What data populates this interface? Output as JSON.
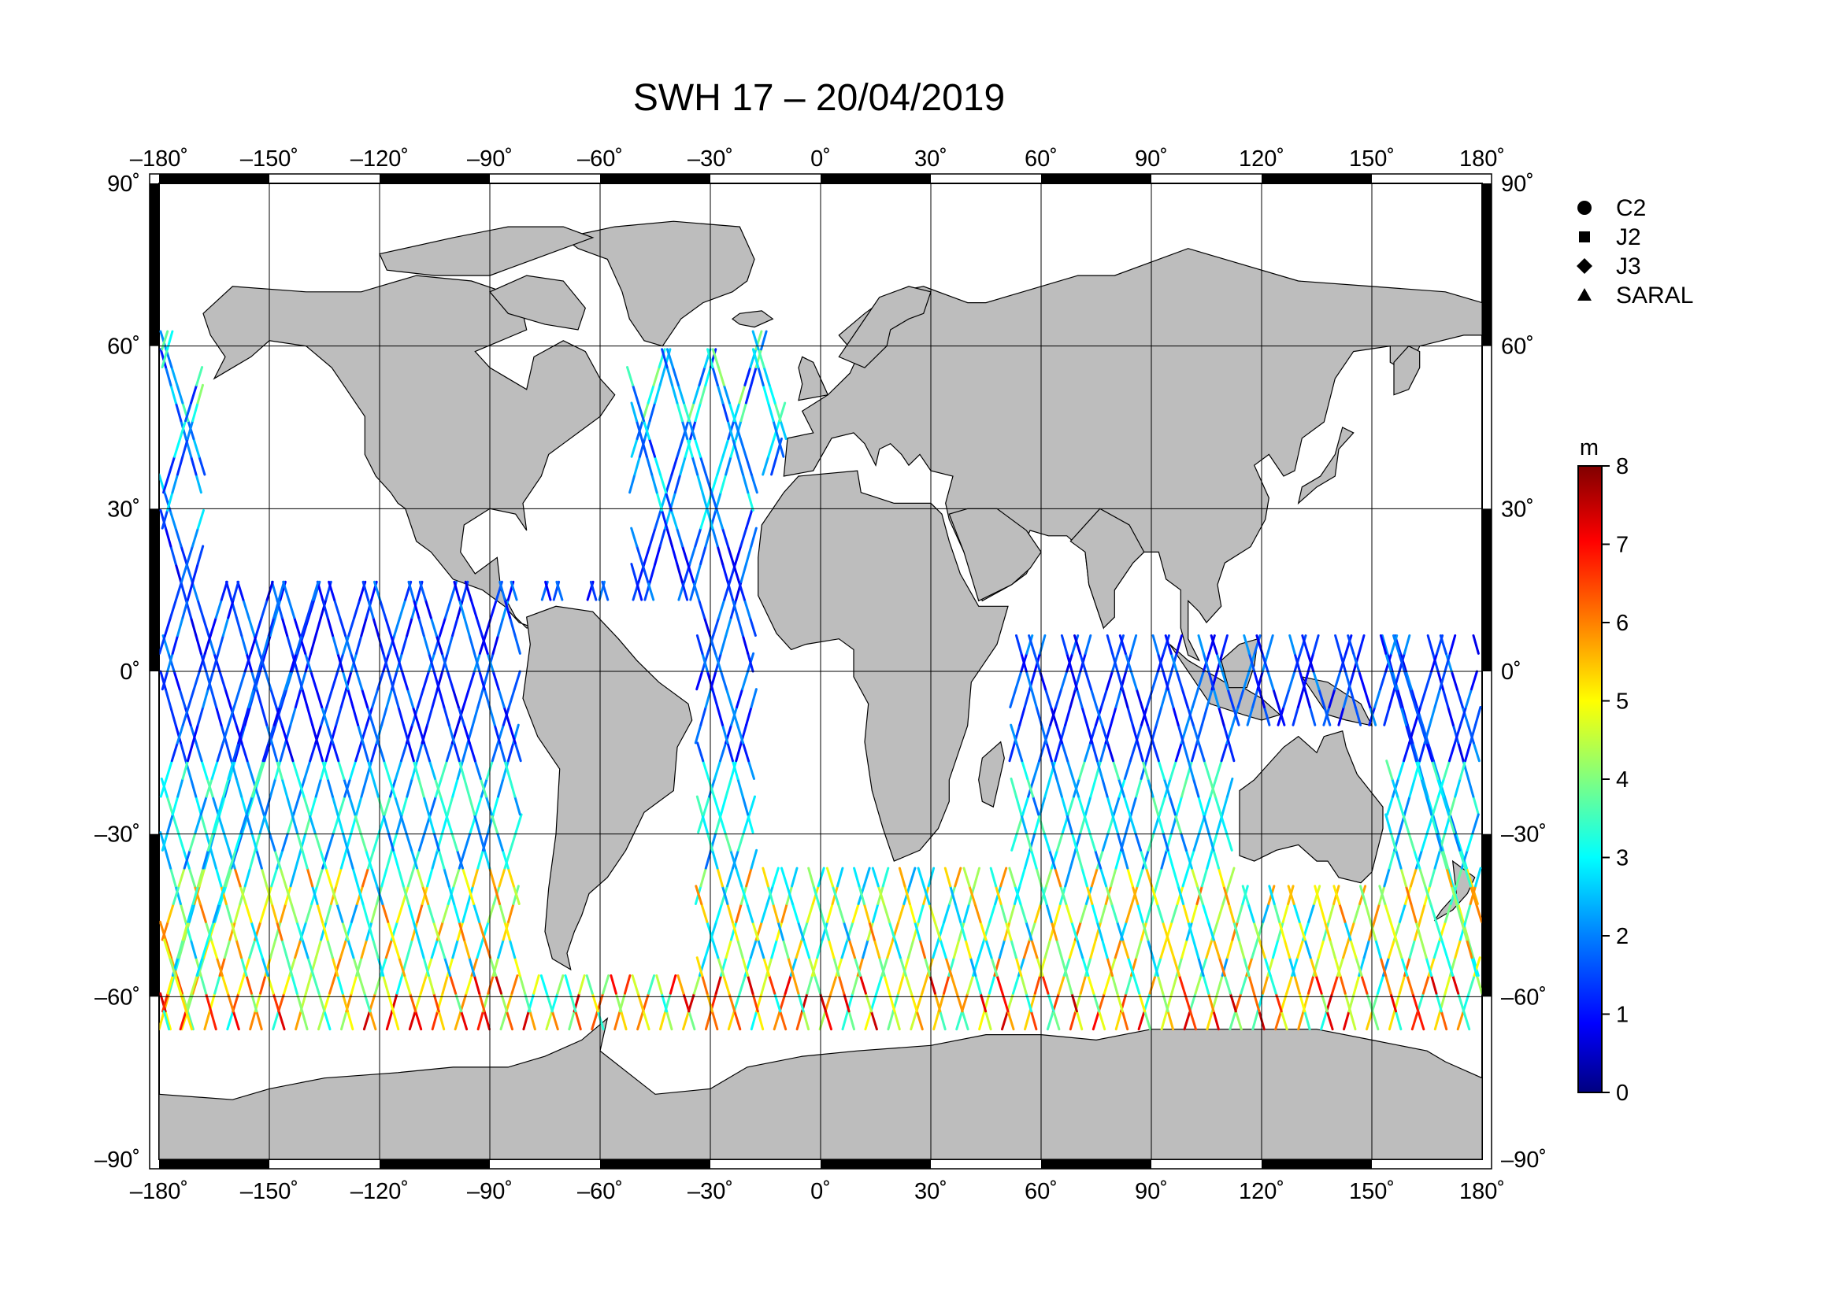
{
  "map": {
    "title": "SWH 17 – 20/04/2019",
    "projection": "equirectangular",
    "lon_range": [
      -180,
      180
    ],
    "lat_range": [
      -90,
      90
    ],
    "lon_ticks": [
      {
        "value": -180,
        "label": "–180˚"
      },
      {
        "value": -150,
        "label": "–150˚"
      },
      {
        "value": -120,
        "label": "–120˚"
      },
      {
        "value": -90,
        "label": "–90˚"
      },
      {
        "value": -60,
        "label": "–60˚"
      },
      {
        "value": -30,
        "label": "–30˚"
      },
      {
        "value": 0,
        "label": "0˚"
      },
      {
        "value": 30,
        "label": "30˚"
      },
      {
        "value": 60,
        "label": "60˚"
      },
      {
        "value": 90,
        "label": "90˚"
      },
      {
        "value": 120,
        "label": "120˚"
      },
      {
        "value": 150,
        "label": "150˚"
      },
      {
        "value": 180,
        "label": "180˚"
      }
    ],
    "lat_ticks": [
      {
        "value": 90,
        "label": "90˚"
      },
      {
        "value": 60,
        "label": "60˚"
      },
      {
        "value": 30,
        "label": "30˚"
      },
      {
        "value": 0,
        "label": "0˚"
      },
      {
        "value": -30,
        "label": "–30˚"
      },
      {
        "value": -60,
        "label": "–60˚"
      },
      {
        "value": -90,
        "label": "–90˚"
      }
    ],
    "grid": true,
    "land_color": "#bdbdbd",
    "ocean_color": "#ffffff"
  },
  "legend": {
    "placement": "top-right",
    "entries": [
      {
        "label": "C2",
        "marker": "circle"
      },
      {
        "label": "J2",
        "marker": "square"
      },
      {
        "label": "J3",
        "marker": "diamond"
      },
      {
        "label": "SARAL",
        "marker": "triangle"
      }
    ]
  },
  "colorbar": {
    "unit": "m",
    "min": 0,
    "max": 8,
    "ticks": [
      {
        "value": 8,
        "label": "8"
      },
      {
        "value": 7,
        "label": "7"
      },
      {
        "value": 6,
        "label": "6"
      },
      {
        "value": 5,
        "label": "5"
      },
      {
        "value": 4,
        "label": "4"
      },
      {
        "value": 3,
        "label": "3"
      },
      {
        "value": 2,
        "label": "2"
      },
      {
        "value": 1,
        "label": "1"
      },
      {
        "value": 0,
        "label": "0"
      }
    ],
    "colormap": [
      "#000080",
      "#0000ff",
      "#0080ff",
      "#00ffff",
      "#80ff80",
      "#ffff00",
      "#ff8000",
      "#ff0000",
      "#800000"
    ]
  },
  "tracks": {
    "description_regions": [
      {
        "name": "southern-ocean-high",
        "lat_range": [
          -65,
          -35
        ],
        "swh_range": [
          4,
          8
        ]
      },
      {
        "name": "tropics-low",
        "lat_range": [
          -20,
          30
        ],
        "swh_range": [
          1,
          2.5
        ]
      }
    ]
  }
}
